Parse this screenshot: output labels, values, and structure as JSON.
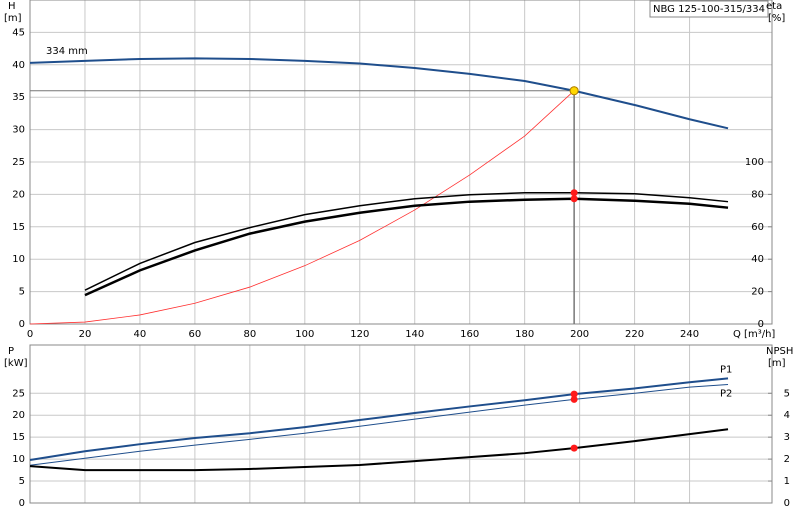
{
  "chart_data": [
    {
      "type": "line",
      "model": "NBG 125-100-315/334",
      "ylabel": "H",
      "yunit": "[m]",
      "y2label": "eta",
      "y2unit": "[%]",
      "xlabel": "Q [m³/h]",
      "xlim": [
        0,
        270
      ],
      "xticks": [
        0,
        20,
        40,
        60,
        80,
        100,
        120,
        140,
        160,
        180,
        200,
        220,
        240
      ],
      "ylim": [
        0,
        50
      ],
      "yticks": [
        0,
        5,
        10,
        15,
        20,
        25,
        30,
        35,
        40,
        45
      ],
      "y2lim": [
        0,
        200
      ],
      "y2ticks": [
        0,
        20,
        40,
        60,
        80,
        100
      ],
      "grid": true,
      "duty_point": {
        "x": 198,
        "y": 36
      },
      "series": [
        {
          "name": "334 mm",
          "color": "#1f4e8c",
          "width": 2,
          "x": [
            0,
            20,
            40,
            60,
            80,
            100,
            120,
            140,
            160,
            180,
            198,
            220,
            240,
            254
          ],
          "values": [
            40.3,
            40.6,
            40.9,
            41.0,
            40.9,
            40.6,
            40.2,
            39.5,
            38.6,
            37.5,
            36,
            33.8,
            31.6,
            30.2
          ]
        },
        {
          "color": "#ff3030",
          "width": 0.8,
          "x": [
            0,
            20,
            40,
            60,
            80,
            100,
            120,
            140,
            160,
            180,
            198
          ],
          "values": [
            0,
            0.3,
            1.4,
            3.2,
            5.7,
            9,
            12.9,
            17.6,
            23,
            29,
            36
          ]
        },
        {
          "color": "#000000",
          "width": 1.5,
          "axis": "y2",
          "x": [
            20,
            40,
            60,
            80,
            100,
            120,
            140,
            160,
            180,
            198,
            220,
            240,
            254
          ],
          "values": [
            20.9,
            37.4,
            50.3,
            59.5,
            67.5,
            73,
            77.3,
            79.8,
            81,
            81,
            80.4,
            77.9,
            75.5
          ]
        },
        {
          "color": "#000000",
          "width": 2.5,
          "axis": "y2",
          "x": [
            20,
            40,
            60,
            80,
            100,
            120,
            140,
            160,
            180,
            198,
            220,
            240,
            254
          ],
          "values": [
            17.8,
            33.1,
            45.4,
            55.8,
            63.2,
            68.7,
            73,
            75.5,
            76.7,
            77.3,
            76.1,
            74.2,
            71.8
          ]
        }
      ]
    },
    {
      "type": "line",
      "ylabel": "P",
      "yunit": "[kW]",
      "y2label": "NPSH",
      "y2unit": "[m]",
      "xlim": [
        0,
        270
      ],
      "ylim": [
        0,
        36
      ],
      "yticks": [
        0,
        5,
        10,
        15,
        20,
        25
      ],
      "y2lim": [
        0,
        7.2
      ],
      "y2ticks": [
        0,
        1,
        2,
        3,
        4,
        5
      ],
      "grid": true,
      "duty_x": 198,
      "series": [
        {
          "name": "P1",
          "color": "#1f4e8c",
          "width": 2,
          "x": [
            0,
            20,
            40,
            60,
            80,
            100,
            120,
            140,
            160,
            180,
            198,
            220,
            240,
            254
          ],
          "values": [
            9.8,
            11.8,
            13.4,
            14.8,
            15.9,
            17.3,
            18.9,
            20.5,
            22,
            23.4,
            24.8,
            26.1,
            27.5,
            28.4
          ]
        },
        {
          "name": "P2",
          "color": "#1f4e8c",
          "width": 1,
          "x": [
            0,
            20,
            40,
            60,
            80,
            100,
            120,
            140,
            160,
            180,
            198,
            220,
            240,
            254
          ],
          "values": [
            8.6,
            10.2,
            11.8,
            13.2,
            14.5,
            15.9,
            17.5,
            19.1,
            20.7,
            22.3,
            23.6,
            25,
            26.4,
            27
          ]
        },
        {
          "color": "#000000",
          "width": 2,
          "axis": "y2",
          "x": [
            0,
            20,
            40,
            60,
            80,
            100,
            120,
            140,
            160,
            180,
            198,
            220,
            240,
            254
          ],
          "values": [
            1.68,
            1.5,
            1.5,
            1.5,
            1.55,
            1.64,
            1.73,
            1.91,
            2.09,
            2.27,
            2.5,
            2.82,
            3.14,
            3.36
          ]
        }
      ]
    }
  ]
}
